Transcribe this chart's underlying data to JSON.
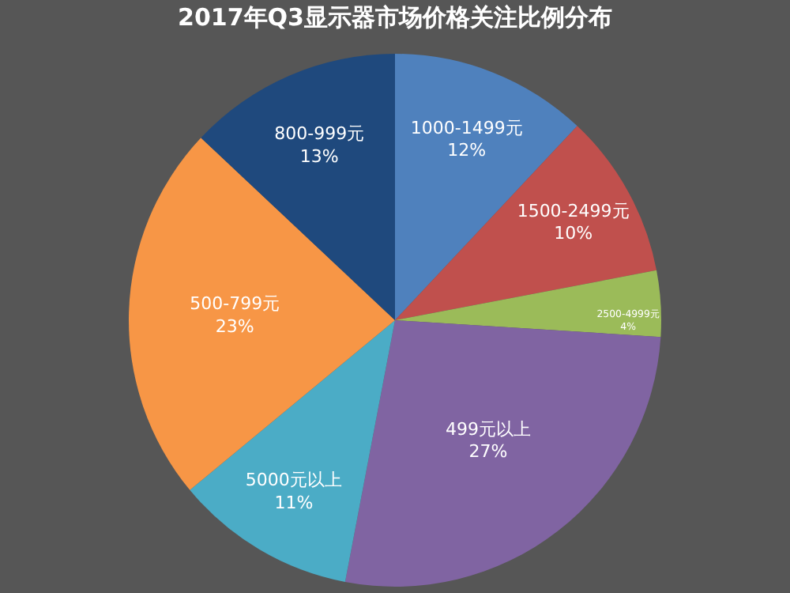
{
  "chart_data": {
    "type": "pie",
    "title": "2017年Q3显示器市场价格关注比例分布",
    "categories": [
      "1000-1499元",
      "1500-2499元",
      "2500-4999元",
      "499元以上",
      "5000元以上",
      "500-799元",
      "800-999元"
    ],
    "values": [
      12,
      10,
      4,
      27,
      11,
      23,
      13
    ],
    "value_labels": [
      "12%",
      "10%",
      "4%",
      "27%",
      "11%",
      "23%",
      "13%"
    ],
    "colors": [
      "#4f81bd",
      "#c0504d",
      "#9bbb59",
      "#8064a2",
      "#4bacc6",
      "#f79646",
      "#1f497d"
    ],
    "legend": false
  }
}
